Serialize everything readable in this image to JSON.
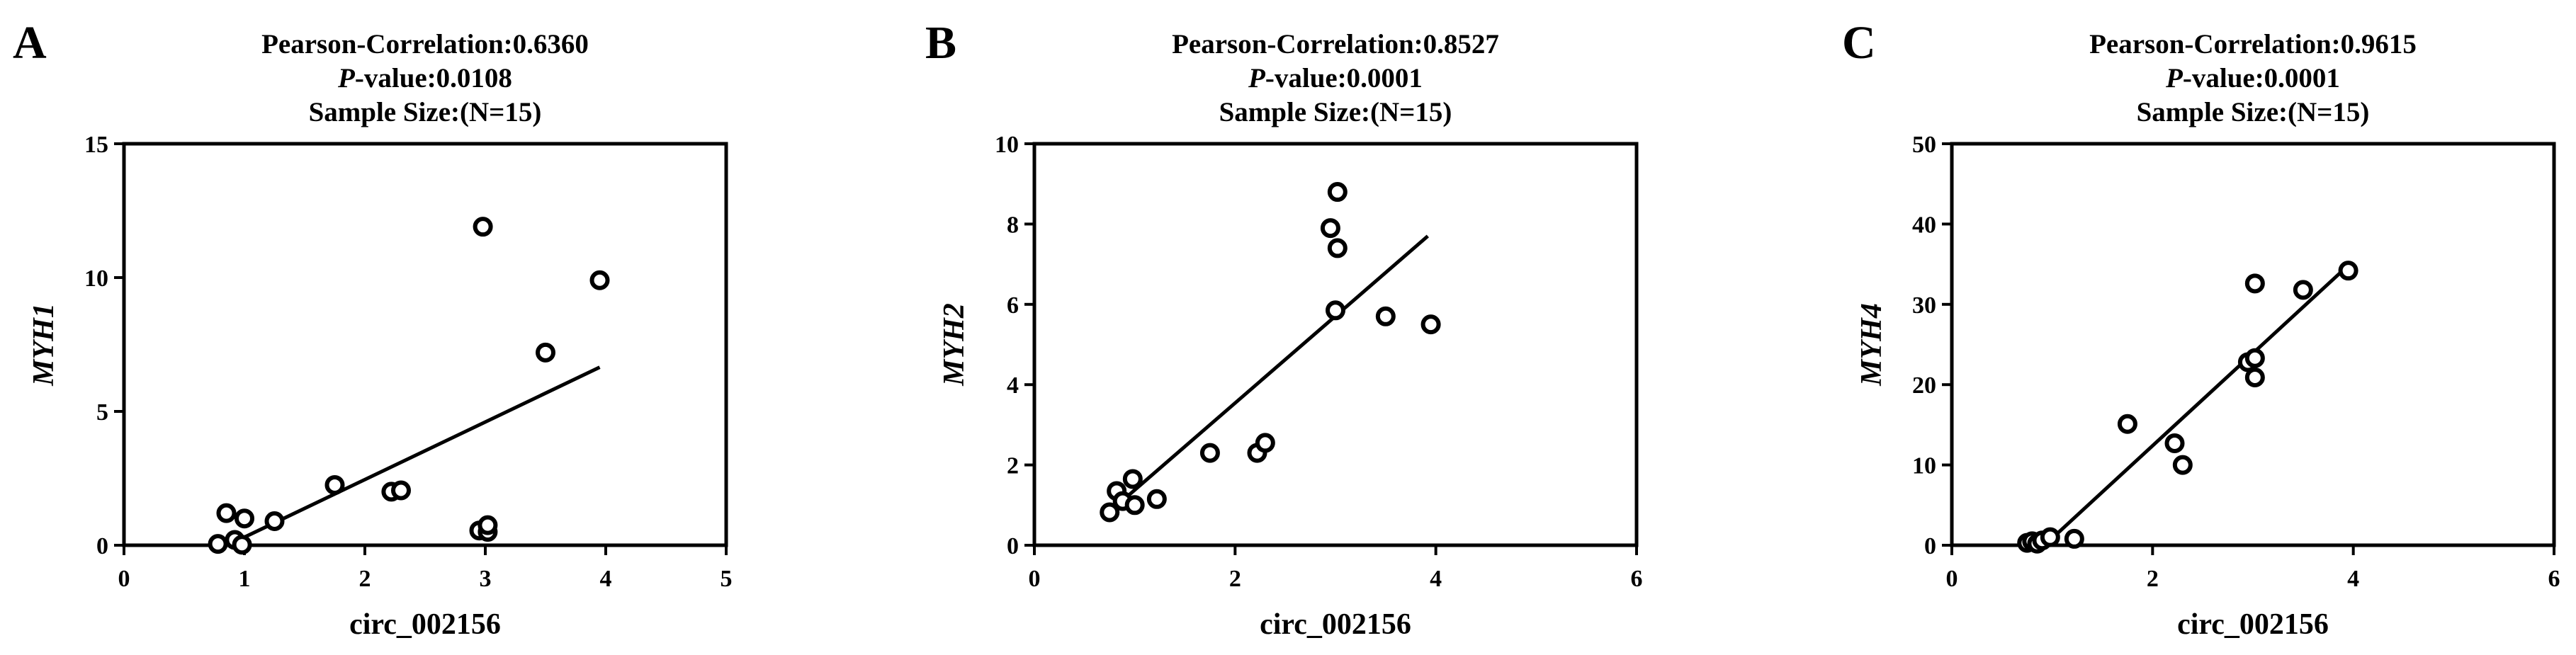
{
  "chart_data": [
    {
      "type": "scatter",
      "panel": "A",
      "title_lines": [
        "Pearson-Correlation:0.6360",
        "P-value:0.0108",
        "Sample Size:(N=15)"
      ],
      "title_italic_prefix": [
        "",
        "P",
        ""
      ],
      "xlabel": "circ_002156",
      "ylabel": "MYH1",
      "xlim": [
        0,
        5
      ],
      "ylim": [
        0,
        15
      ],
      "xticks": [
        0,
        1,
        2,
        3,
        4,
        5
      ],
      "yticks": [
        0,
        5,
        10,
        15
      ],
      "fit": {
        "x": [
          1.0,
          3.95
        ],
        "y": [
          0.3,
          6.65
        ]
      },
      "points": [
        {
          "x": 0.78,
          "y": 0.05
        },
        {
          "x": 0.85,
          "y": 1.2
        },
        {
          "x": 0.92,
          "y": 0.2
        },
        {
          "x": 0.98,
          "y": 0.02
        },
        {
          "x": 1.0,
          "y": 1.0
        },
        {
          "x": 1.25,
          "y": 0.9
        },
        {
          "x": 1.75,
          "y": 2.25
        },
        {
          "x": 2.22,
          "y": 2.0
        },
        {
          "x": 2.3,
          "y": 2.05
        },
        {
          "x": 2.95,
          "y": 0.55
        },
        {
          "x": 3.02,
          "y": 0.5
        },
        {
          "x": 3.02,
          "y": 0.75
        },
        {
          "x": 2.98,
          "y": 11.9
        },
        {
          "x": 3.5,
          "y": 7.2
        },
        {
          "x": 3.95,
          "y": 9.9
        }
      ]
    },
    {
      "type": "scatter",
      "panel": "B",
      "title_lines": [
        "Pearson-Correlation:0.8527",
        "P-value:0.0001",
        "Sample Size:(N=15)"
      ],
      "title_italic_prefix": [
        "",
        "P",
        ""
      ],
      "xlabel": "circ_002156",
      "ylabel": "MYH2",
      "xlim": [
        0,
        6
      ],
      "ylim": [
        0,
        10
      ],
      "xticks": [
        0,
        2,
        4,
        6
      ],
      "yticks": [
        0,
        2,
        4,
        6,
        8,
        10
      ],
      "fit": {
        "x": [
          0.78,
          3.92
        ],
        "y": [
          0.9,
          7.7
        ]
      },
      "points": [
        {
          "x": 0.75,
          "y": 0.82
        },
        {
          "x": 0.82,
          "y": 1.35
        },
        {
          "x": 0.88,
          "y": 1.1
        },
        {
          "x": 0.98,
          "y": 1.65
        },
        {
          "x": 1.0,
          "y": 1.0
        },
        {
          "x": 1.22,
          "y": 1.15
        },
        {
          "x": 1.75,
          "y": 2.3
        },
        {
          "x": 2.22,
          "y": 2.3
        },
        {
          "x": 2.3,
          "y": 2.55
        },
        {
          "x": 2.95,
          "y": 7.9
        },
        {
          "x": 3.02,
          "y": 8.8
        },
        {
          "x": 3.02,
          "y": 7.4
        },
        {
          "x": 3.0,
          "y": 5.85
        },
        {
          "x": 3.5,
          "y": 5.7
        },
        {
          "x": 3.95,
          "y": 5.5
        }
      ]
    },
    {
      "type": "scatter",
      "panel": "C",
      "title_lines": [
        "Pearson-Correlation:0.9615",
        "P-value:0.0001",
        "Sample Size:(N=15)"
      ],
      "title_italic_prefix": [
        "",
        "P",
        ""
      ],
      "xlabel": "circ_002156",
      "ylabel": "MYH4",
      "xlim": [
        0,
        6
      ],
      "ylim": [
        0,
        50
      ],
      "xticks": [
        0,
        2,
        4,
        6
      ],
      "yticks": [
        0,
        10,
        20,
        30,
        40,
        50
      ],
      "fit": {
        "x": [
          0.95,
          3.92
        ],
        "y": [
          0.3,
          34.5
        ]
      },
      "points": [
        {
          "x": 0.75,
          "y": 0.3
        },
        {
          "x": 0.8,
          "y": 0.5
        },
        {
          "x": 0.85,
          "y": 0.2
        },
        {
          "x": 0.9,
          "y": 0.6
        },
        {
          "x": 0.98,
          "y": 1.0
        },
        {
          "x": 1.22,
          "y": 0.8
        },
        {
          "x": 1.75,
          "y": 15.1
        },
        {
          "x": 2.22,
          "y": 12.7
        },
        {
          "x": 2.3,
          "y": 10.0
        },
        {
          "x": 2.95,
          "y": 22.8
        },
        {
          "x": 3.02,
          "y": 32.6
        },
        {
          "x": 3.02,
          "y": 23.3
        },
        {
          "x": 3.02,
          "y": 20.9
        },
        {
          "x": 3.5,
          "y": 31.8
        },
        {
          "x": 3.95,
          "y": 34.2
        }
      ]
    }
  ]
}
